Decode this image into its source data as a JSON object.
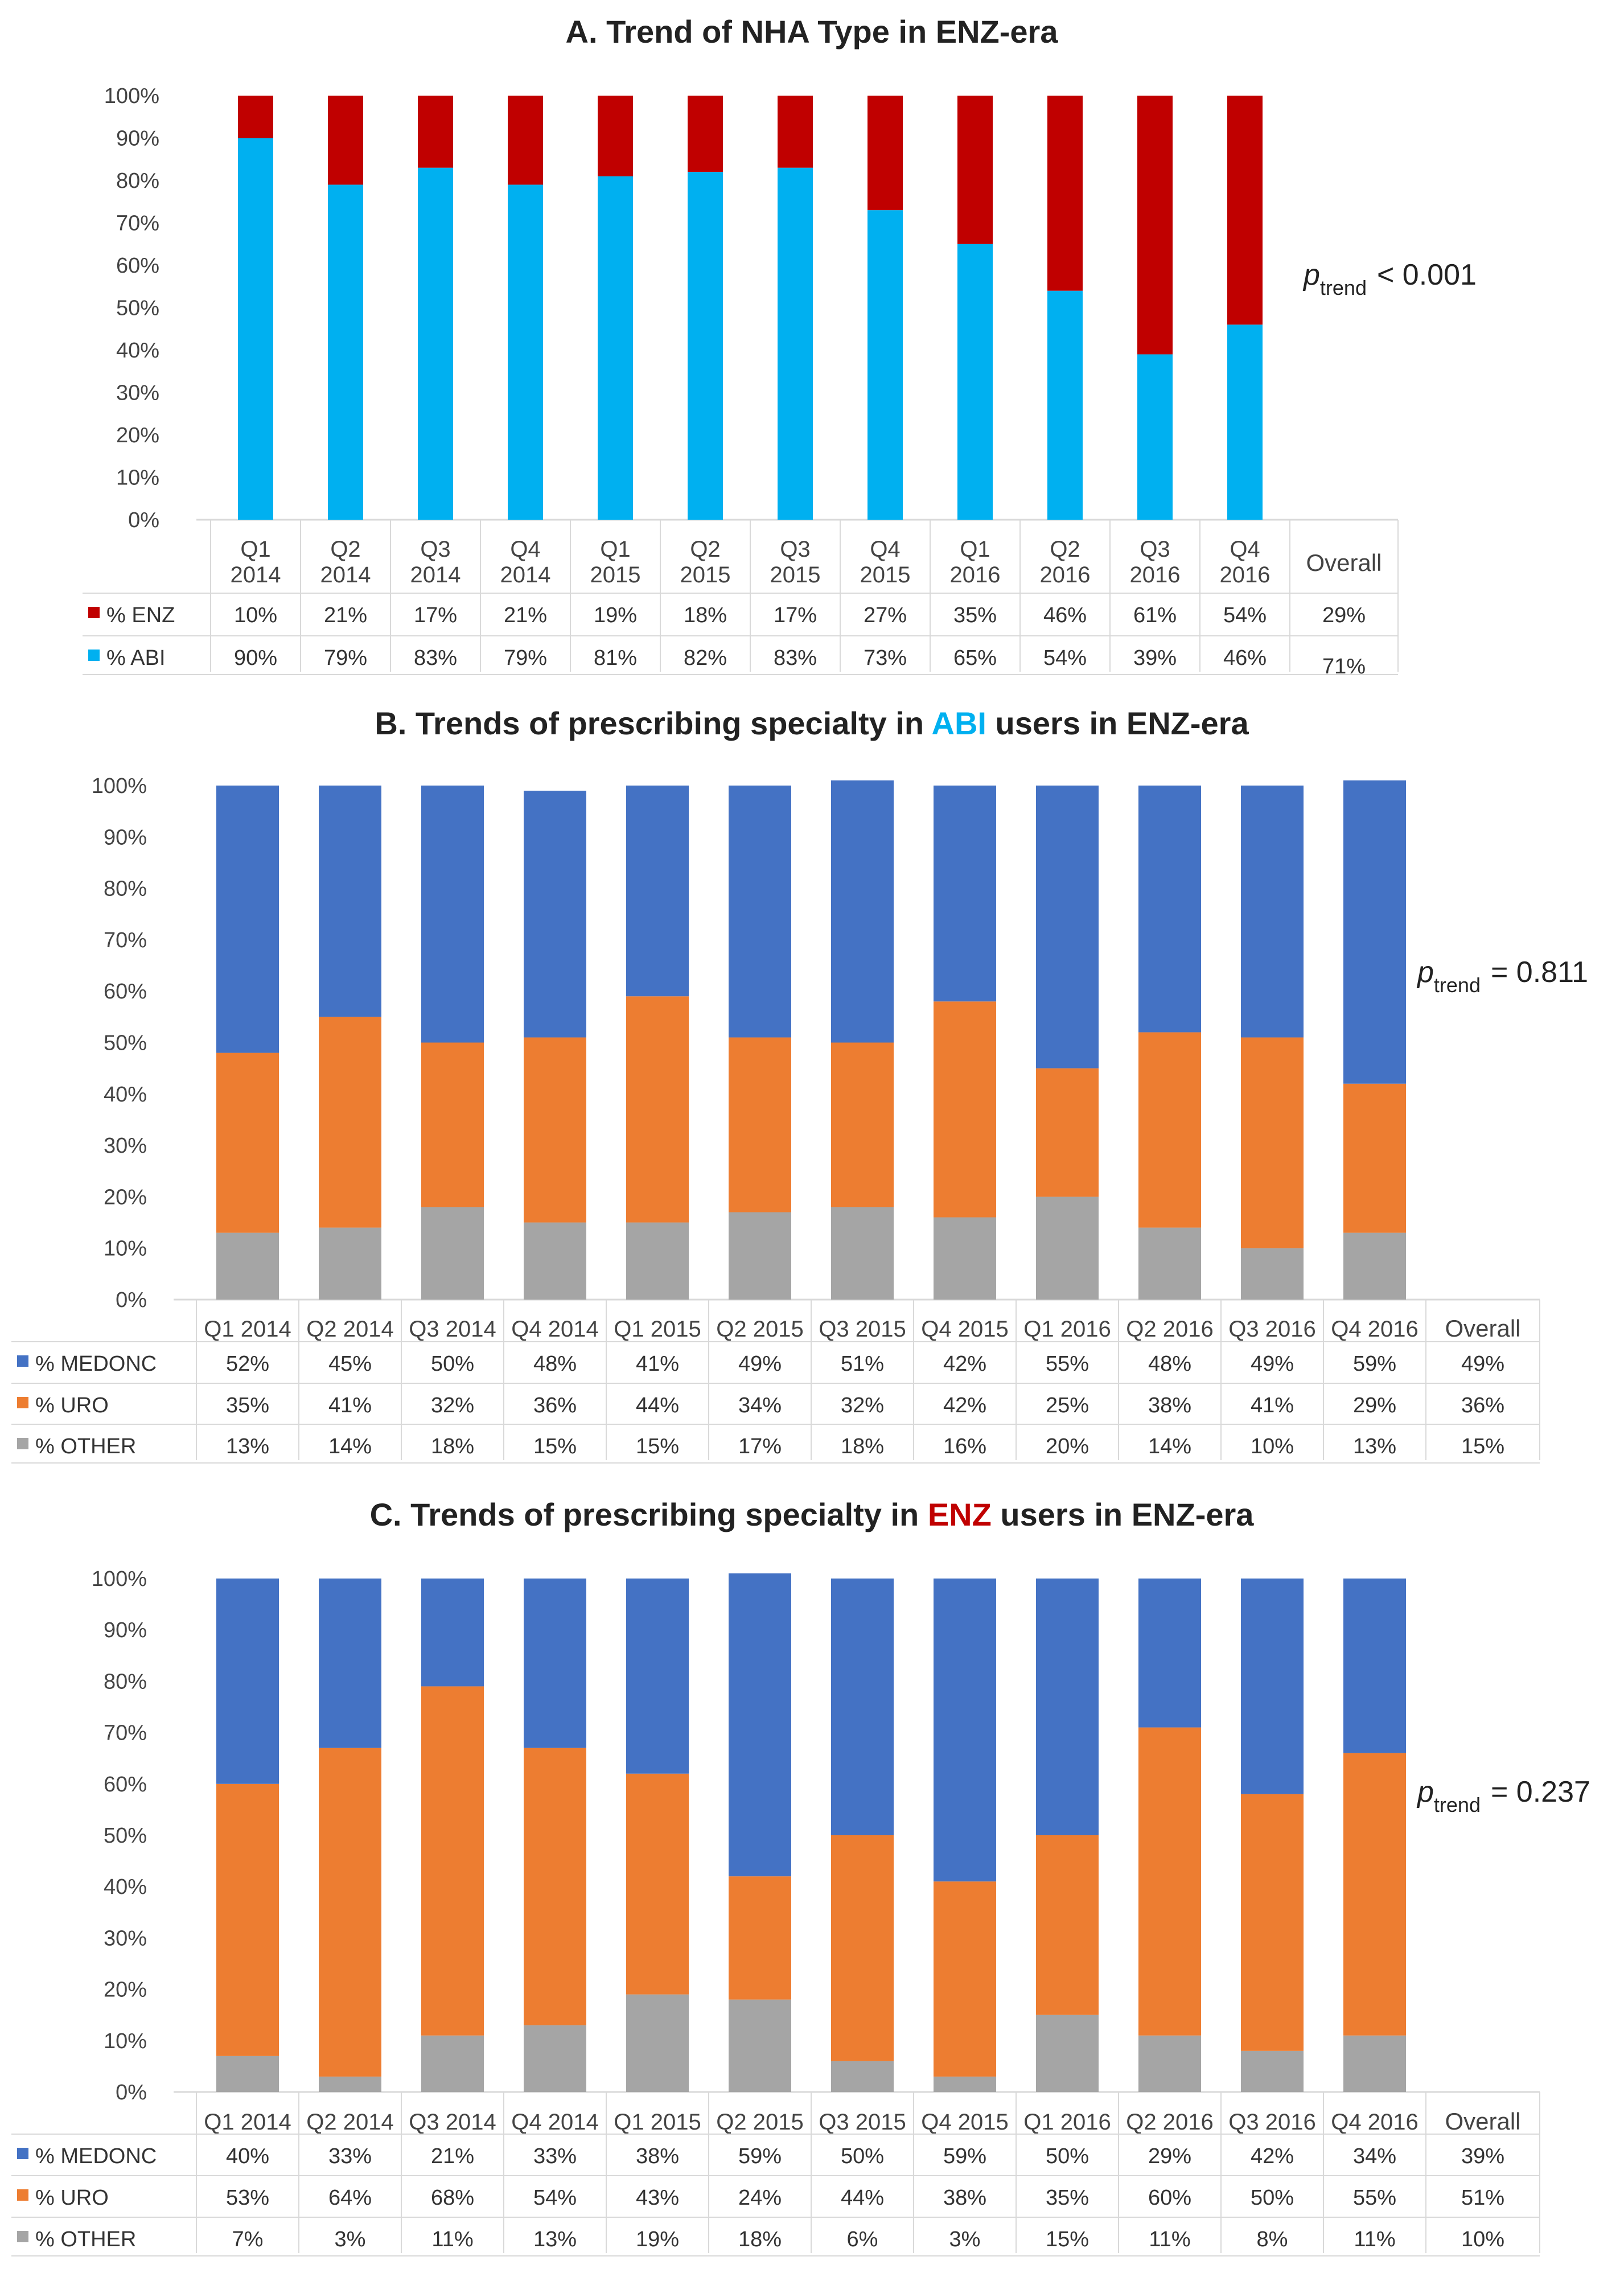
{
  "chart_data": [
    {
      "type": "bar",
      "stacked": true,
      "title": "A. Trend of NHA Type in ENZ-era",
      "title_parts": [
        {
          "text": "A. Trend of NHA Type in ENZ-era",
          "color": "#222222"
        }
      ],
      "categories_line1": [
        "Q1",
        "Q2",
        "Q3",
        "Q4",
        "Q1",
        "Q2",
        "Q3",
        "Q4",
        "Q1",
        "Q2",
        "Q3",
        "Q4"
      ],
      "categories_line2": [
        "2014",
        "2014",
        "2014",
        "2014",
        "2015",
        "2015",
        "2015",
        "2015",
        "2016",
        "2016",
        "2016",
        "2016"
      ],
      "overall_label": "Overall",
      "ylim": [
        0,
        100
      ],
      "yticks": [
        "0%",
        "10%",
        "20%",
        "30%",
        "40%",
        "50%",
        "60%",
        "70%",
        "80%",
        "90%",
        "100%"
      ],
      "stack_order": [
        "% ABI",
        "% ENZ"
      ],
      "series": [
        {
          "name": "% ENZ",
          "color": "#c00000",
          "values": [
            10,
            21,
            17,
            21,
            19,
            18,
            17,
            27,
            35,
            46,
            61,
            54
          ],
          "labels": [
            "10%",
            "21%",
            "17%",
            "21%",
            "19%",
            "18%",
            "17%",
            "27%",
            "35%",
            "46%",
            "61%",
            "54%"
          ],
          "overall": "29%"
        },
        {
          "name": "% ABI",
          "color": "#00b0f0",
          "values": [
            90,
            79,
            83,
            79,
            81,
            82,
            83,
            73,
            65,
            54,
            39,
            46
          ],
          "labels": [
            "90%",
            "79%",
            "83%",
            "79%",
            "81%",
            "82%",
            "83%",
            "73%",
            "65%",
            "54%",
            "39%",
            "46%"
          ],
          "overall": "71%"
        }
      ],
      "p_label": "p",
      "p_subscript": "trend",
      "p_value": "< 0.001"
    },
    {
      "type": "bar",
      "stacked": true,
      "title": "B. Trends of prescribing specialty in ABI users in ENZ-era",
      "title_parts": [
        {
          "text": "B. Trends of prescribing specialty in ",
          "color": "#222222"
        },
        {
          "text": "ABI",
          "color": "#00b0f0"
        },
        {
          "text": " users in ENZ-era",
          "color": "#222222"
        }
      ],
      "categories_line1": [
        "Q1 2014",
        "Q2 2014",
        "Q3 2014",
        "Q4 2014",
        "Q1 2015",
        "Q2 2015",
        "Q3 2015",
        "Q4 2015",
        "Q1 2016",
        "Q2 2016",
        "Q3 2016",
        "Q4 2016"
      ],
      "overall_label": "Overall",
      "ylim": [
        0,
        100
      ],
      "yticks": [
        "0%",
        "10%",
        "20%",
        "30%",
        "40%",
        "50%",
        "60%",
        "70%",
        "80%",
        "90%",
        "100%"
      ],
      "stack_order": [
        "% OTHER",
        "% URO",
        "% MEDONC"
      ],
      "series": [
        {
          "name": "% MEDONC",
          "color": "#4472c4",
          "values": [
            52,
            45,
            50,
            48,
            41,
            49,
            51,
            42,
            55,
            48,
            49,
            59
          ],
          "labels": [
            "52%",
            "45%",
            "50%",
            "48%",
            "41%",
            "49%",
            "51%",
            "42%",
            "55%",
            "48%",
            "49%",
            "59%"
          ],
          "overall": "49%"
        },
        {
          "name": "% URO",
          "color": "#ed7d31",
          "values": [
            35,
            41,
            32,
            36,
            44,
            34,
            32,
            42,
            25,
            38,
            41,
            29
          ],
          "labels": [
            "35%",
            "41%",
            "32%",
            "36%",
            "44%",
            "34%",
            "32%",
            "42%",
            "25%",
            "38%",
            "41%",
            "29%"
          ],
          "overall": "36%"
        },
        {
          "name": "% OTHER",
          "color": "#a5a5a5",
          "values": [
            13,
            14,
            18,
            15,
            15,
            17,
            18,
            16,
            20,
            14,
            10,
            13
          ],
          "labels": [
            "13%",
            "14%",
            "18%",
            "15%",
            "15%",
            "17%",
            "18%",
            "16%",
            "20%",
            "14%",
            "10%",
            "13%"
          ],
          "overall": "15%"
        }
      ],
      "p_label": "p",
      "p_subscript": "trend",
      "p_value": "= 0.811"
    },
    {
      "type": "bar",
      "stacked": true,
      "title": "C. Trends of prescribing specialty in ENZ users in ENZ-era",
      "title_parts": [
        {
          "text": "C. Trends of prescribing specialty in ",
          "color": "#222222"
        },
        {
          "text": "ENZ",
          "color": "#c00000"
        },
        {
          "text": " users in ENZ-era",
          "color": "#222222"
        }
      ],
      "categories_line1": [
        "Q1 2014",
        "Q2 2014",
        "Q3 2014",
        "Q4 2014",
        "Q1 2015",
        "Q2 2015",
        "Q3 2015",
        "Q4 2015",
        "Q1 2016",
        "Q2 2016",
        "Q3 2016",
        "Q4 2016"
      ],
      "overall_label": "Overall",
      "ylim": [
        0,
        100
      ],
      "yticks": [
        "0%",
        "10%",
        "20%",
        "30%",
        "40%",
        "50%",
        "60%",
        "70%",
        "80%",
        "90%",
        "100%"
      ],
      "stack_order": [
        "% OTHER",
        "% URO",
        "% MEDONC"
      ],
      "series": [
        {
          "name": "% MEDONC",
          "color": "#4472c4",
          "values": [
            40,
            33,
            21,
            33,
            38,
            59,
            50,
            59,
            50,
            29,
            42,
            34
          ],
          "labels": [
            "40%",
            "33%",
            "21%",
            "33%",
            "38%",
            "59%",
            "50%",
            "59%",
            "50%",
            "29%",
            "42%",
            "34%"
          ],
          "overall": "39%"
        },
        {
          "name": "% URO",
          "color": "#ed7d31",
          "values": [
            53,
            64,
            68,
            54,
            43,
            24,
            44,
            38,
            35,
            60,
            50,
            55
          ],
          "labels": [
            "53%",
            "64%",
            "68%",
            "54%",
            "43%",
            "24%",
            "44%",
            "38%",
            "35%",
            "60%",
            "50%",
            "55%"
          ],
          "overall": "51%"
        },
        {
          "name": "% OTHER",
          "color": "#a5a5a5",
          "values": [
            7,
            3,
            11,
            13,
            19,
            18,
            6,
            3,
            15,
            11,
            8,
            11
          ],
          "labels": [
            "7%",
            "3%",
            "11%",
            "13%",
            "19%",
            "18%",
            "6%",
            "3%",
            "15%",
            "11%",
            "8%",
            "11%"
          ],
          "overall": "10%"
        }
      ],
      "p_label": "p",
      "p_subscript": "trend",
      "p_value": "= 0.237"
    }
  ]
}
